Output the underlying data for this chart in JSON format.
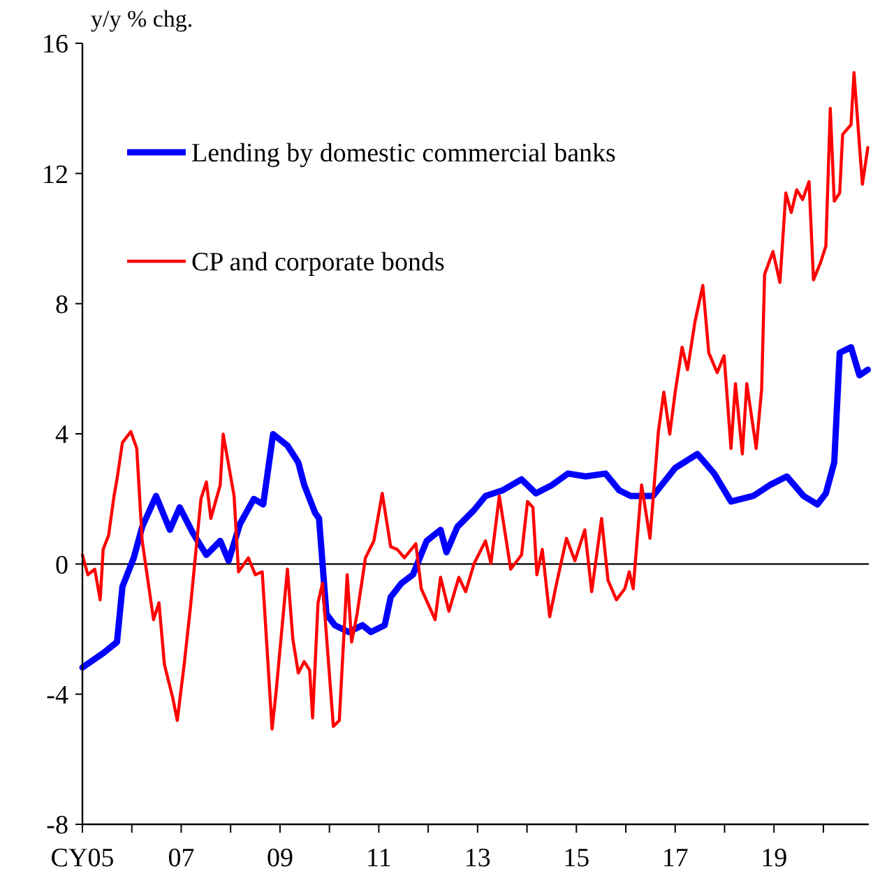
{
  "chart_data": {
    "type": "line",
    "ylabel": "y/y % chg.",
    "xlim": [
      2005,
      2020.92
    ],
    "xticks": [
      {
        "value": 2005,
        "label": "CY05"
      },
      {
        "value": 2006,
        "label": null
      },
      {
        "value": 2007,
        "label": "07"
      },
      {
        "value": 2008,
        "label": null
      },
      {
        "value": 2009,
        "label": "09"
      },
      {
        "value": 2010,
        "label": null
      },
      {
        "value": 2011,
        "label": "11"
      },
      {
        "value": 2012,
        "label": null
      },
      {
        "value": 2013,
        "label": "13"
      },
      {
        "value": 2014,
        "label": null
      },
      {
        "value": 2015,
        "label": "15"
      },
      {
        "value": 2016,
        "label": null
      },
      {
        "value": 2017,
        "label": "17"
      },
      {
        "value": 2018,
        "label": null
      },
      {
        "value": 2019,
        "label": "19"
      },
      {
        "value": 2020,
        "label": null
      }
    ],
    "ylim": [
      -8,
      16
    ],
    "yticks": [
      -8,
      -4,
      0,
      4,
      8,
      12,
      16
    ],
    "grid": false,
    "legend": "top left",
    "marker": "none",
    "line_style": "solid",
    "ref_lines": [
      {
        "axis": "y",
        "value": 0,
        "color": "#000000"
      }
    ],
    "series": [
      {
        "name": "Lending by domestic commercial banks",
        "color": "#0000ff",
        "x": [
          2005.0,
          2005.42,
          2005.7,
          2005.81,
          2006.04,
          2006.21,
          2006.49,
          2006.77,
          2006.97,
          2007.23,
          2007.51,
          2007.79,
          2007.96,
          2008.19,
          2008.47,
          2008.66,
          2008.86,
          2009.15,
          2009.37,
          2009.49,
          2009.71,
          2009.79,
          2009.94,
          2010.11,
          2010.39,
          2010.67,
          2010.84,
          2011.12,
          2011.24,
          2011.46,
          2011.69,
          2011.97,
          2012.25,
          2012.37,
          2012.59,
          2012.93,
          2013.16,
          2013.5,
          2013.89,
          2014.18,
          2014.51,
          2014.83,
          2015.19,
          2015.59,
          2015.87,
          2016.1,
          2016.55,
          2017.0,
          2017.45,
          2017.79,
          2018.13,
          2018.58,
          2018.92,
          2019.26,
          2019.6,
          2019.88,
          2020.05,
          2020.22,
          2020.33,
          2020.56,
          2020.73,
          2020.9
        ],
        "values": [
          -3.18,
          -2.74,
          -2.4,
          -0.7,
          0.19,
          1.14,
          2.09,
          1.05,
          1.74,
          0.97,
          0.28,
          0.71,
          0.1,
          1.23,
          2.0,
          1.83,
          3.99,
          3.64,
          3.12,
          2.43,
          1.57,
          1.4,
          -1.54,
          -1.88,
          -2.09,
          -1.88,
          -2.09,
          -1.88,
          -1.02,
          -0.59,
          -0.33,
          0.71,
          1.05,
          0.36,
          1.14,
          1.66,
          2.09,
          2.26,
          2.6,
          2.17,
          2.43,
          2.78,
          2.69,
          2.78,
          2.26,
          2.09,
          2.09,
          2.95,
          3.38,
          2.78,
          1.92,
          2.09,
          2.43,
          2.69,
          2.09,
          1.83,
          2.17,
          3.12,
          6.49,
          6.66,
          5.8,
          5.97
        ]
      },
      {
        "name": "CP and corporate bonds",
        "color": "#ff0000",
        "x": [
          2005.0,
          2005.11,
          2005.25,
          2005.36,
          2005.42,
          2005.53,
          2005.64,
          2005.7,
          2005.81,
          2005.98,
          2006.1,
          2006.21,
          2006.44,
          2006.55,
          2006.66,
          2006.83,
          2006.92,
          2007.06,
          2007.19,
          2007.4,
          2007.51,
          2007.6,
          2007.79,
          2007.85,
          2007.96,
          2008.07,
          2008.16,
          2008.36,
          2008.5,
          2008.64,
          2008.84,
          2008.92,
          2009.15,
          2009.26,
          2009.37,
          2009.49,
          2009.6,
          2009.66,
          2009.77,
          2009.86,
          2010.08,
          2010.2,
          2010.36,
          2010.45,
          2010.56,
          2010.73,
          2010.9,
          2011.07,
          2011.24,
          2011.37,
          2011.52,
          2011.75,
          2011.86,
          2012.14,
          2012.25,
          2012.42,
          2012.62,
          2012.76,
          2012.93,
          2013.16,
          2013.27,
          2013.44,
          2013.67,
          2013.89,
          2014.01,
          2014.12,
          2014.2,
          2014.31,
          2014.46,
          2014.6,
          2014.8,
          2014.97,
          2015.17,
          2015.31,
          2015.51,
          2015.64,
          2015.81,
          2015.98,
          2016.07,
          2016.15,
          2016.32,
          2016.49,
          2016.66,
          2016.77,
          2016.89,
          2017.0,
          2017.14,
          2017.25,
          2017.4,
          2017.56,
          2017.68,
          2017.85,
          2017.99,
          2018.13,
          2018.22,
          2018.36,
          2018.45,
          2018.64,
          2018.75,
          2018.81,
          2018.98,
          2019.12,
          2019.24,
          2019.35,
          2019.46,
          2019.58,
          2019.71,
          2019.8,
          2019.94,
          2020.05,
          2020.14,
          2020.22,
          2020.33,
          2020.39,
          2020.56,
          2020.62,
          2020.79,
          2020.9
        ],
        "values": [
          0.28,
          -0.33,
          -0.16,
          -1.1,
          0.45,
          0.88,
          2.09,
          2.6,
          3.73,
          4.07,
          3.55,
          0.71,
          -1.71,
          -1.19,
          -3.09,
          -4.12,
          -4.81,
          -3.09,
          -1.28,
          2.0,
          2.52,
          1.4,
          2.43,
          3.99,
          3.04,
          2.09,
          -0.24,
          0.19,
          -0.33,
          -0.24,
          -5.07,
          -3.95,
          -0.16,
          -2.31,
          -3.35,
          -3.0,
          -3.26,
          -4.73,
          -1.19,
          -0.59,
          -4.99,
          -4.81,
          -0.33,
          -2.4,
          -1.54,
          0.19,
          0.71,
          2.17,
          0.53,
          0.45,
          0.19,
          0.62,
          -0.76,
          -1.71,
          -0.41,
          -1.45,
          -0.41,
          -0.85,
          0.02,
          0.71,
          0.02,
          2.09,
          -0.16,
          0.28,
          1.92,
          1.74,
          -0.33,
          0.45,
          -1.62,
          -0.59,
          0.79,
          0.1,
          1.05,
          -0.85,
          1.4,
          -0.5,
          -1.1,
          -0.76,
          -0.24,
          -0.76,
          2.43,
          0.79,
          4.07,
          5.28,
          3.99,
          5.28,
          6.66,
          5.97,
          7.44,
          8.56,
          6.49,
          5.88,
          6.4,
          3.55,
          5.54,
          3.38,
          5.54,
          3.55,
          5.37,
          8.9,
          9.6,
          8.65,
          11.4,
          10.8,
          11.5,
          11.2,
          11.75,
          8.73,
          9.25,
          9.77,
          14.0,
          11.15,
          11.4,
          13.2,
          13.5,
          15.1,
          11.67,
          12.8
        ]
      }
    ]
  }
}
